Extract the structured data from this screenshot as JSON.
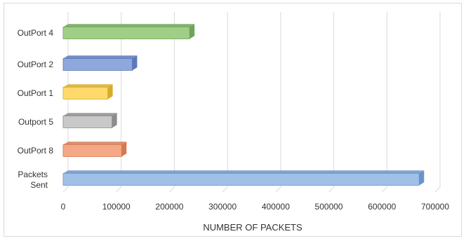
{
  "chart_data": {
    "type": "bar",
    "orientation": "horizontal",
    "categories": [
      "OutPort 4",
      "OutPort 2",
      "OutPort 1",
      "Outport 5",
      "OutPort 8",
      "Packets Sent"
    ],
    "values": [
      238000,
      130000,
      84000,
      92000,
      110000,
      670000
    ],
    "bar_colors": [
      "#9fcf86",
      "#8fa8dc",
      "#ffd96b",
      "#c9c9c9",
      "#f5a885",
      "#9fc1e8"
    ],
    "bar_edge_colors": [
      "#6fa557",
      "#5b79bb",
      "#d9ab2a",
      "#8c8c8c",
      "#d37a52",
      "#6a93c9"
    ],
    "xlabel": "NUMBER OF PACKETS",
    "ylabel": "",
    "xlim": [
      0,
      700000
    ],
    "xticks": [
      0,
      100000,
      200000,
      300000,
      400000,
      500000,
      600000,
      700000
    ],
    "xtick_labels": [
      "0",
      "100000",
      "200000",
      "300000",
      "400000",
      "500000",
      "600000",
      "700000"
    ],
    "grid": true,
    "style": "3d-bar"
  }
}
